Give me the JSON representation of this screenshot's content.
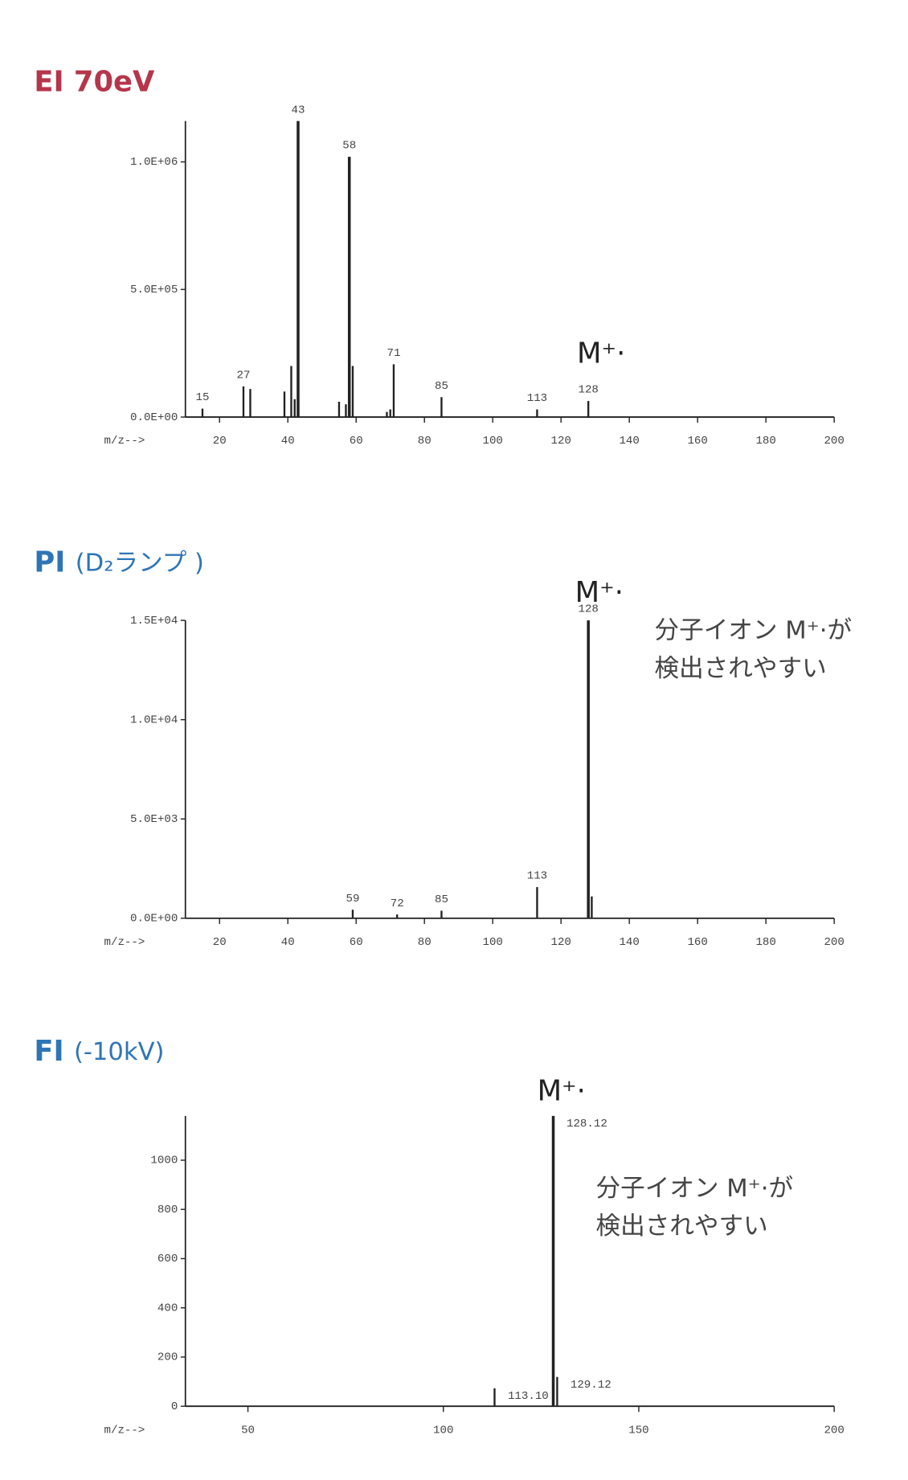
{
  "chart_data": [
    {
      "type": "bar",
      "title": "EI 70eV",
      "color": "#b5364a",
      "x_label": "m/z-->",
      "annotation": "M⁺·",
      "x": [
        15,
        27,
        29,
        39,
        41,
        42,
        43,
        55,
        57,
        58,
        59,
        69,
        70,
        71,
        85,
        113,
        128
      ],
      "values": [
        33000,
        120000,
        110000,
        100000,
        200000,
        70000,
        1160000,
        60000,
        50000,
        1020000,
        200000,
        20000,
        30000,
        207000,
        78000,
        30000,
        63000
      ],
      "x_labels": [
        "15",
        "27",
        null,
        null,
        null,
        null,
        "43",
        null,
        null,
        "58",
        null,
        null,
        null,
        "71",
        "85",
        "113",
        "128"
      ],
      "xlim": [
        10,
        200
      ],
      "xticks": [
        20,
        40,
        60,
        80,
        100,
        120,
        140,
        160,
        180,
        200
      ],
      "ylim": [
        0,
        1160000
      ],
      "yticks": [
        {
          "value": 0,
          "label": "0.0E+00"
        },
        {
          "value": 500000,
          "label": "5.0E+05"
        },
        {
          "value": 1000000,
          "label": "1.0E+06"
        }
      ]
    },
    {
      "type": "bar",
      "title": "PI",
      "subtitle": "(D₂ランプ )",
      "color": "#2e75b6",
      "x_label": "m/z-->",
      "annotation": "M⁺·",
      "note": [
        "分子イオン M⁺·が",
        "検出されやすい"
      ],
      "x": [
        59,
        72,
        85,
        113,
        128,
        129
      ],
      "values": [
        430,
        190,
        380,
        1570,
        15000,
        1100
      ],
      "x_labels": [
        "59",
        "72",
        "85",
        "113",
        "128",
        null
      ],
      "xlim": [
        10,
        200
      ],
      "xticks": [
        20,
        40,
        60,
        80,
        100,
        120,
        140,
        160,
        180,
        200
      ],
      "ylim": [
        0,
        15000
      ],
      "yticks": [
        {
          "value": 0,
          "label": "0.0E+00"
        },
        {
          "value": 5000,
          "label": "5.0E+03"
        },
        {
          "value": 10000,
          "label": "1.0E+04"
        },
        {
          "value": 15000,
          "label": "1.5E+04"
        }
      ]
    },
    {
      "type": "bar",
      "title": "FI",
      "subtitle": "(-10kV)",
      "color": "#2e75b6",
      "x_label": "m/z-->",
      "annotation": "M⁺·",
      "note": [
        "分子イオン M⁺·が",
        "検出されやすい"
      ],
      "x": [
        113.1,
        128.12,
        129.12
      ],
      "values": [
        73,
        1180,
        119
      ],
      "x_labels": [
        "113.10",
        "128.12",
        "129.12"
      ],
      "xlim": [
        34,
        200
      ],
      "xticks": [
        50,
        100,
        150,
        200
      ],
      "ylim": [
        0,
        1180
      ],
      "yticks": [
        0,
        200,
        400,
        600,
        800,
        1000
      ]
    }
  ]
}
